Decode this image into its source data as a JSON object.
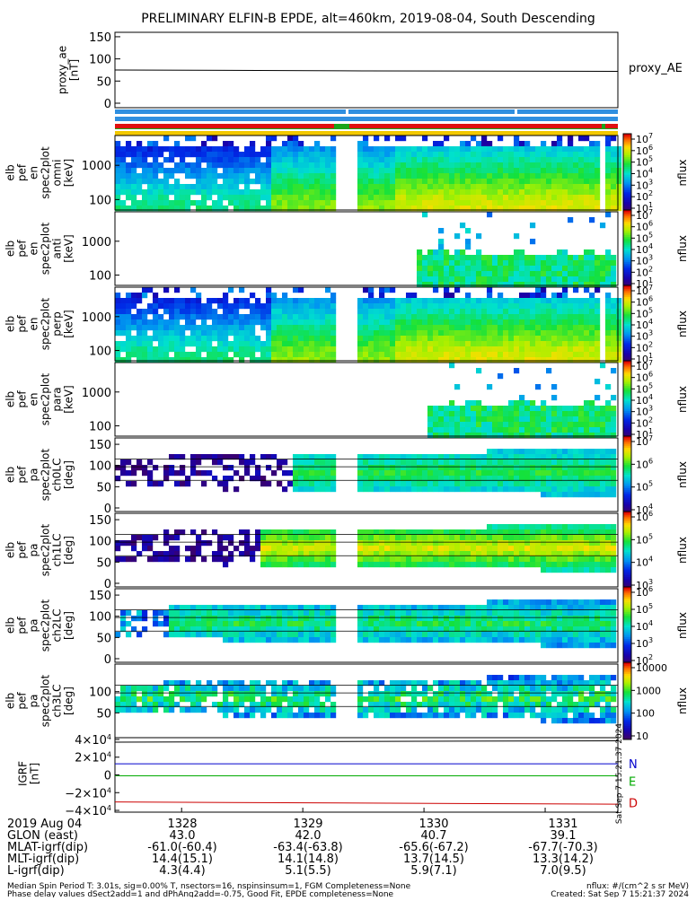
{
  "title": "PRELIMINARY ELFIN-B EPDE, alt=460km, 2019-08-04, South Descending",
  "proxy_panel": {
    "ylabel_lines": [
      "proxy_ae",
      "[nT]"
    ],
    "yticks": [
      "150",
      "100",
      "50",
      "0"
    ],
    "series_label": "proxy_AE",
    "ylim": [
      0,
      150
    ]
  },
  "spec_panels": [
    {
      "id": "omni",
      "ylabel_lines": [
        "elb",
        "pef",
        "en",
        "spec2plot",
        "omni",
        "[keV]"
      ],
      "yticks": [
        "1000",
        "100"
      ],
      "cb_label": "nflux",
      "cb_ticks": [
        "10^7",
        "10^6",
        "10^5",
        "10^4",
        "10^3",
        "10^2",
        "10^1"
      ],
      "data_range": [
        1328.62,
        1331.4
      ]
    },
    {
      "id": "anti",
      "ylabel_lines": [
        "elb",
        "pef",
        "en",
        "spec2plot",
        "anti",
        "[keV]"
      ],
      "yticks": [
        "1000",
        "100"
      ],
      "cb_label": "nflux",
      "cb_ticks": [
        "10^7",
        "10^6",
        "10^5",
        "10^4",
        "10^3",
        "10^2",
        "10^1"
      ],
      "data_range": [
        1329.9,
        1331.4
      ]
    },
    {
      "id": "perp",
      "ylabel_lines": [
        "elb",
        "pef",
        "en",
        "spec2plot",
        "perp",
        "[keV]"
      ],
      "yticks": [
        "1000",
        "100"
      ],
      "cb_label": "nflux",
      "cb_ticks": [
        "10^7",
        "10^6",
        "10^5",
        "10^4",
        "10^3",
        "10^2",
        "10^1"
      ],
      "data_range": [
        1328.62,
        1331.4
      ]
    },
    {
      "id": "para",
      "ylabel_lines": [
        "elb",
        "pef",
        "en",
        "spec2plot",
        "para",
        "[keV]"
      ],
      "yticks": [
        "1000",
        "100"
      ],
      "cb_label": "nflux",
      "cb_ticks": [
        "10^7",
        "10^6",
        "10^5",
        "10^4",
        "10^3",
        "10^2",
        "10^1"
      ],
      "data_range": [
        1330.0,
        1331.4
      ]
    }
  ],
  "pa_panels": [
    {
      "id": "ch0LC",
      "ylabel_lines": [
        "elb",
        "pef",
        "pa",
        "spec2plot",
        "ch0LC",
        "[deg]"
      ],
      "yticks": [
        "150",
        "100",
        "50",
        "0"
      ],
      "cb_label": "nflux",
      "cb_ticks": [
        "10^7",
        "10^6",
        "10^5",
        "10^4"
      ]
    },
    {
      "id": "ch1LC",
      "ylabel_lines": [
        "elb",
        "pef",
        "pa",
        "spec2plot",
        "ch1LC",
        "[deg]"
      ],
      "yticks": [
        "150",
        "100",
        "50",
        "0"
      ],
      "cb_label": "nflux",
      "cb_ticks": [
        "10^6",
        "10^5",
        "10^4",
        "10^3"
      ]
    },
    {
      "id": "ch2LC",
      "ylabel_lines": [
        "elb",
        "pef",
        "pa",
        "spec2plot",
        "ch2LC",
        "[deg]"
      ],
      "yticks": [
        "150",
        "100",
        "50",
        "0"
      ],
      "cb_label": "nflux",
      "cb_ticks": [
        "10^6",
        "10^5",
        "10^4",
        "10^3",
        "10^2"
      ]
    },
    {
      "id": "ch3LC",
      "ylabel_lines": [
        "elb",
        "pef",
        "pa",
        "spec2plot",
        "ch3LC",
        "[deg]"
      ],
      "yticks": [
        "100",
        "50"
      ],
      "cb_label": "nflux",
      "cb_ticks": [
        "10000",
        "1000",
        "100",
        "10"
      ]
    }
  ],
  "igrf_panel": {
    "ylabel_lines": [
      "IGRF",
      "[nT]"
    ],
    "yticks": [
      "4×10^4",
      "2×10^4",
      "0",
      "−2×10^4",
      "−4×10^4"
    ],
    "labels": [
      {
        "name": "N",
        "color": "#0000cc"
      },
      {
        "name": "E",
        "color": "#00aa00"
      },
      {
        "name": "D",
        "color": "#cc0000"
      }
    ],
    "side_stamp": "Sat Sep  7 15:21:37 2024"
  },
  "axis": {
    "row_labels": [
      "2019 Aug 04",
      "GLON (east)",
      "MLAT-igrf(dip)",
      "MLT-igrf(dip)",
      "L-igrf(dip)"
    ],
    "ticks": [
      {
        "time": "1328",
        "glon": "43.0",
        "mlat": "-61.0(-60.4)",
        "mlt": "14.4(15.1)",
        "l": "4.3(4.4)"
      },
      {
        "time": "1329",
        "glon": "42.0",
        "mlat": "-63.4(-63.8)",
        "mlt": "14.1(14.8)",
        "l": "5.1(5.5)"
      },
      {
        "time": "1330",
        "glon": "40.7",
        "mlat": "-65.6(-67.2)",
        "mlt": "13.7(14.5)",
        "l": "5.9(7.1)"
      },
      {
        "time": "1331",
        "glon": "39.1",
        "mlat": "-67.7(-70.3)",
        "mlt": "13.3(14.2)",
        "l": "7.0(9.5)"
      }
    ]
  },
  "footer": {
    "line1_left": "Median Spin Period T: 3.01s, sig=0.00% T, nsectors=16, nspinsinsum=1, FGM Completeness=None",
    "line2_left": "Phase delay values dSect2add=1 and dPhAng2add=-0.75, Good Fit, EPDE completeness=None",
    "line1_right": "nflux: #/(cm^2 s sr MeV)",
    "line2_right": "Created: Sat Sep  7 15:21:37 2024"
  },
  "colors": {
    "bar_blue": "#2f8fe0",
    "bar_green": "#1aa51a",
    "bar_red": "#e01010",
    "bar_yellow": "#f2c800"
  },
  "chart_data": {
    "type": "heatmap",
    "x_range_hhmm": [
      1327.45,
      1331.6
    ],
    "proxy_ae_values": [
      {
        "x": 1327.45,
        "y": 75
      },
      {
        "x": 1329.5,
        "y": 73
      },
      {
        "x": 1331.6,
        "y": 72
      }
    ],
    "igrf": {
      "N": [
        {
          "x": 1327.45,
          "y": 12500
        },
        {
          "x": 1331.6,
          "y": 12500
        }
      ],
      "E": [
        {
          "x": 1327.45,
          "y": -1000
        },
        {
          "x": 1331.6,
          "y": -1000
        }
      ],
      "D": [
        {
          "x": 1327.45,
          "y": -30500
        },
        {
          "x": 1331.6,
          "y": -33000
        }
      ],
      "total": [
        {
          "x": 1327.45,
          "y": 37000
        },
        {
          "x": 1331.6,
          "y": 38500
        }
      ]
    },
    "data_gap": [
      1329.3,
      1329.42
    ]
  }
}
